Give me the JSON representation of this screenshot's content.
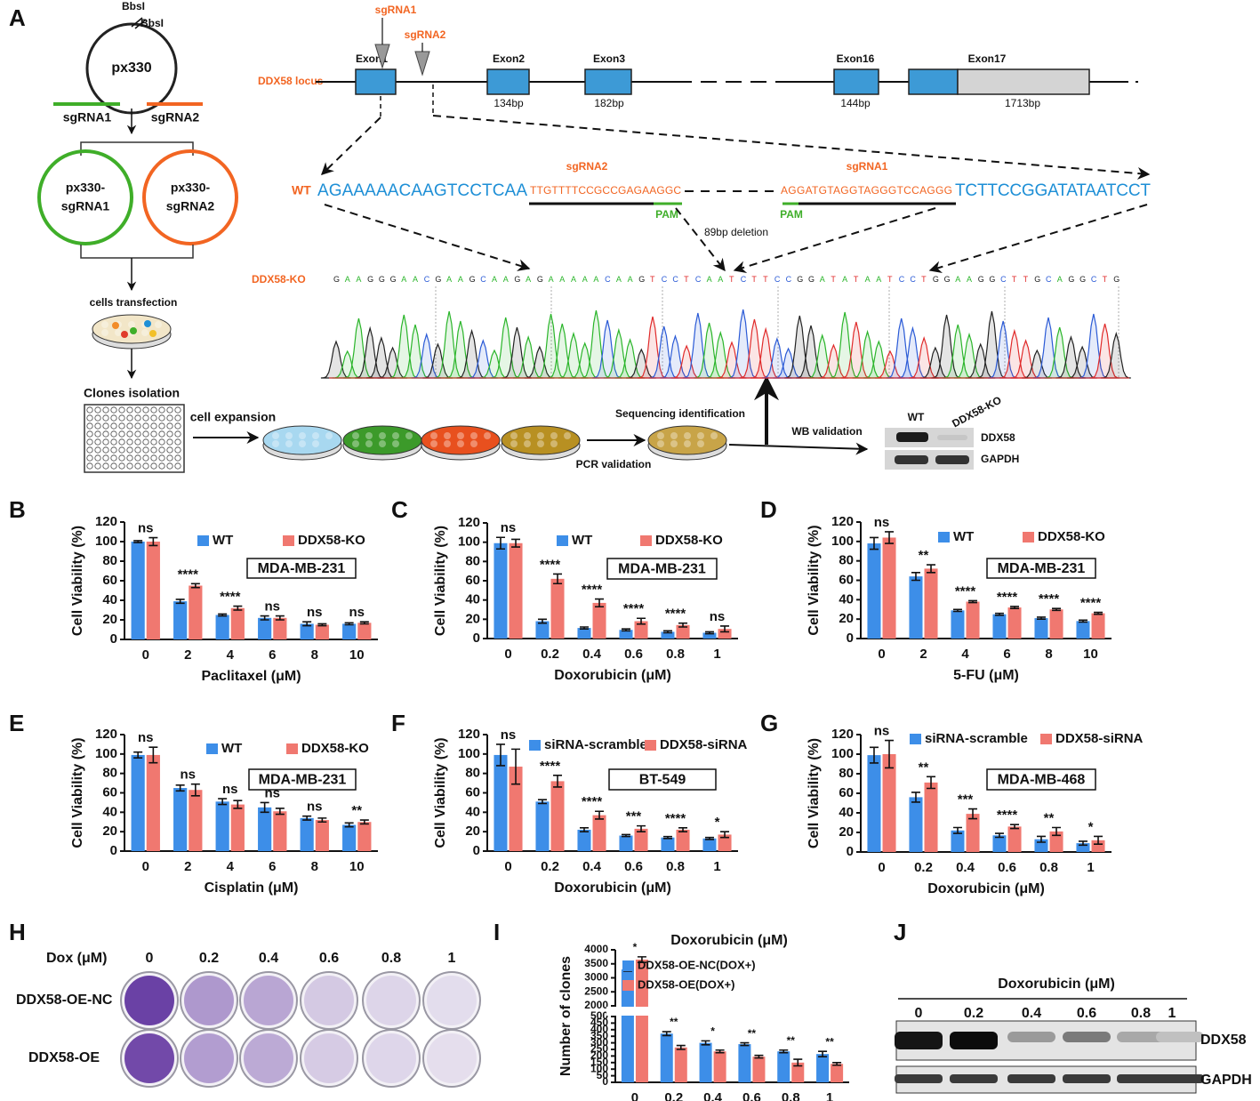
{
  "panel_labels": [
    "A",
    "B",
    "C",
    "D",
    "E",
    "F",
    "G",
    "H",
    "I",
    "J"
  ],
  "panel_a": {
    "plasmid": "px330",
    "enzyme_sites": [
      "BbsI",
      "BbsI"
    ],
    "guides": [
      "sgRNA1",
      "sgRNA2"
    ],
    "plasmid_1": [
      "px330-",
      "sgRNA1"
    ],
    "plasmid_2": [
      "px330-",
      "sgRNA2"
    ],
    "steps": [
      "cells transfection",
      "Clones isolation",
      "cell expansion",
      "PCR validation",
      "Sequencing identification",
      "WB validation"
    ],
    "locus": {
      "name": "DDX58 locus",
      "exons": [
        "Exon1",
        "Exon2",
        "Exon3",
        "Exon16",
        "Exon17"
      ],
      "exon_sizes": [
        "134bp",
        "182bp",
        "144bp",
        "1713bp"
      ],
      "guides": [
        "sgRNA1",
        "sgRNA2"
      ]
    },
    "wt": {
      "label": "WT",
      "seq_left": "AGAAAAACAAGTCCTCAA",
      "sgrna2_seq": "TTGTTTTCCGCCGAGAAGGC",
      "sgrna2": "sgRNA2",
      "sgrna1_seq": "AGGATGTAGGTAGGGTCCAGGG",
      "sgrna1": "sgRNA1",
      "seq_right": "TCTTCCGGATATAATCCT",
      "pam": [
        "PAM",
        "PAM"
      ],
      "deletion": "89bp deletion"
    },
    "ko": {
      "label": "DDX58-KO",
      "sequence": "GAAGGGAACGAAGCAAGAGAAAAACAAGTCCTCAATCTTCCGGATATAATCCTGGAAGGCTTGCAGGCTG"
    },
    "western": {
      "lanes": [
        "WT",
        "DDX58-KO"
      ],
      "proteins": [
        "DDX58",
        "GAPDH"
      ]
    }
  },
  "chart_data": [
    {
      "type": "bar",
      "ylabel": "Cell Viability (%)",
      "xlabel": "Paclitaxel (μM)",
      "inset": "MDA-MB-231",
      "categories": [
        "0",
        "2",
        "4",
        "6",
        "8",
        "10"
      ],
      "series": [
        {
          "name": "WT",
          "color": "#3d8ee8",
          "values": [
            100,
            39,
            25,
            22,
            16,
            16
          ],
          "errors": [
            1,
            2,
            1,
            2,
            2,
            1
          ]
        },
        {
          "name": "DDX58-KO",
          "color": "#f07870",
          "values": [
            100,
            55,
            32,
            22,
            15,
            17
          ],
          "errors": [
            4,
            2,
            2,
            2,
            1,
            1
          ]
        }
      ],
      "significance": [
        "ns",
        "****",
        "****",
        "ns",
        "ns",
        "ns"
      ],
      "ylim": [
        0,
        120
      ],
      "yticks": [
        0,
        20,
        40,
        60,
        80,
        100,
        120
      ]
    },
    {
      "type": "bar",
      "ylabel": "Cell Viability (%)",
      "xlabel": "Doxorubicin (μM)",
      "inset": "MDA-MB-231",
      "categories": [
        "0",
        "0.2",
        "0.4",
        "0.6",
        "0.8",
        "1"
      ],
      "series": [
        {
          "name": "WT",
          "color": "#3d8ee8",
          "values": [
            99,
            18,
            11,
            9,
            7,
            6
          ],
          "errors": [
            6,
            2,
            1,
            1,
            1,
            1
          ]
        },
        {
          "name": "DDX58-KO",
          "color": "#f07870",
          "values": [
            99,
            62,
            37,
            18,
            14,
            10
          ],
          "errors": [
            4,
            5,
            4,
            3,
            2,
            3
          ]
        }
      ],
      "significance": [
        "ns",
        "****",
        "****",
        "****",
        "****",
        "ns"
      ],
      "ylim": [
        0,
        120
      ],
      "yticks": [
        0,
        20,
        40,
        60,
        80,
        100,
        120
      ]
    },
    {
      "type": "bar",
      "ylabel": "Cell Viability (%)",
      "xlabel": "5-FU (μM)",
      "inset": "MDA-MB-231",
      "categories": [
        "0",
        "2",
        "4",
        "6",
        "8",
        "10"
      ],
      "series": [
        {
          "name": "WT",
          "color": "#3d8ee8",
          "values": [
            98,
            64,
            29,
            25,
            21,
            18
          ],
          "errors": [
            6,
            4,
            1,
            1,
            1,
            1
          ]
        },
        {
          "name": "DDX58-KO",
          "color": "#f07870",
          "values": [
            104,
            72,
            38,
            32,
            30,
            26
          ],
          "errors": [
            6,
            4,
            1,
            1,
            1,
            1
          ]
        }
      ],
      "significance": [
        "ns",
        "**",
        "****",
        "****",
        "****",
        "****"
      ],
      "ylim": [
        0,
        120
      ],
      "yticks": [
        0,
        20,
        40,
        60,
        80,
        100,
        120
      ]
    },
    {
      "type": "bar",
      "ylabel": "Cell Viability (%)",
      "xlabel": "Cisplatin (μM)",
      "inset": "MDA-MB-231",
      "categories": [
        "0",
        "2",
        "4",
        "6",
        "8",
        "10"
      ],
      "series": [
        {
          "name": "WT",
          "color": "#3d8ee8",
          "values": [
            99,
            65,
            51,
            45,
            34,
            27
          ],
          "errors": [
            3,
            3,
            3,
            5,
            2,
            2
          ]
        },
        {
          "name": "DDX58-KO",
          "color": "#f07870",
          "values": [
            99,
            63,
            48,
            41,
            32,
            30
          ],
          "errors": [
            8,
            6,
            4,
            3,
            2,
            2
          ]
        }
      ],
      "significance": [
        "ns",
        "ns",
        "ns",
        "ns",
        "ns",
        "**"
      ],
      "ylim": [
        0,
        120
      ],
      "yticks": [
        0,
        20,
        40,
        60,
        80,
        100,
        120
      ]
    },
    {
      "type": "bar",
      "ylabel": "Cell Viability (%)",
      "xlabel": "Doxorubicin (μM)",
      "inset": "BT-549",
      "categories": [
        "0",
        "0.2",
        "0.4",
        "0.6",
        "0.8",
        "1"
      ],
      "series": [
        {
          "name": "siRNA-scramble",
          "color": "#3d8ee8",
          "values": [
            99,
            51,
            22,
            16,
            14,
            13
          ],
          "errors": [
            11,
            2,
            2,
            1,
            1,
            1
          ]
        },
        {
          "name": "DDX58-siRNA",
          "color": "#f07870",
          "values": [
            87,
            72,
            37,
            23,
            22,
            17
          ],
          "errors": [
            18,
            6,
            4,
            3,
            2,
            3
          ]
        }
      ],
      "significance": [
        "ns",
        "****",
        "****",
        "***",
        "****",
        "*"
      ],
      "ylim": [
        0,
        120
      ],
      "yticks": [
        0,
        20,
        40,
        60,
        80,
        100,
        120
      ]
    },
    {
      "type": "bar",
      "ylabel": "Cell Viability (%)",
      "xlabel": "Doxorubicin (μM)",
      "inset": "MDA-MB-468",
      "categories": [
        "0",
        "0.2",
        "0.4",
        "0.6",
        "0.8",
        "1"
      ],
      "series": [
        {
          "name": "siRNA-scramble",
          "color": "#3d8ee8",
          "values": [
            99,
            56,
            22,
            17,
            13,
            9
          ],
          "errors": [
            8,
            5,
            3,
            2,
            3,
            2
          ]
        },
        {
          "name": "DDX58-siRNA",
          "color": "#f07870",
          "values": [
            100,
            71,
            39,
            26,
            21,
            12
          ],
          "errors": [
            14,
            6,
            5,
            2,
            4,
            4
          ]
        }
      ],
      "significance": [
        "ns",
        "**",
        "***",
        "****",
        "**",
        "*"
      ],
      "ylim": [
        0,
        120
      ],
      "yticks": [
        0,
        20,
        40,
        60,
        80,
        100,
        120
      ]
    },
    {
      "type": "bar",
      "title": "Doxorubicin (μM)",
      "ylabel": "Number of clones",
      "categories": [
        "0",
        "0.2",
        "0.4",
        "0.6",
        "0.8",
        "1"
      ],
      "series": [
        {
          "name": "DDX58-OE-NC(DOX+)",
          "color": "#3d8ee8",
          "values": [
            3300,
            370,
            300,
            290,
            235,
            215
          ],
          "errors": [
            60,
            15,
            15,
            10,
            10,
            20
          ]
        },
        {
          "name": "DDX58-OE(DOX+)",
          "color": "#f07870",
          "values": [
            3650,
            265,
            235,
            195,
            150,
            140
          ],
          "errors": [
            100,
            15,
            10,
            10,
            25,
            10
          ]
        }
      ],
      "significance": [
        "*",
        "**",
        "*",
        "**",
        "**",
        "**"
      ],
      "ylim": [
        0,
        4000
      ],
      "axis_break": [
        500,
        2000
      ],
      "yticks": [
        0,
        50,
        100,
        150,
        200,
        250,
        300,
        350,
        400,
        450,
        500,
        2000,
        2500,
        3000,
        3500,
        4000
      ]
    }
  ],
  "panel_h": {
    "dose_label": "Dox (μM)",
    "doses": [
      "0",
      "0.2",
      "0.4",
      "0.6",
      "0.8",
      "1"
    ],
    "rows": [
      "DDX58-OE-NC",
      "DDX58-OE"
    ]
  },
  "panel_j": {
    "title": "Doxorubicin (μM)",
    "doses": [
      "0",
      "0.2",
      "0.4",
      "0.6",
      "0.8",
      "1"
    ],
    "proteins": [
      "DDX58",
      "GAPDH"
    ]
  }
}
